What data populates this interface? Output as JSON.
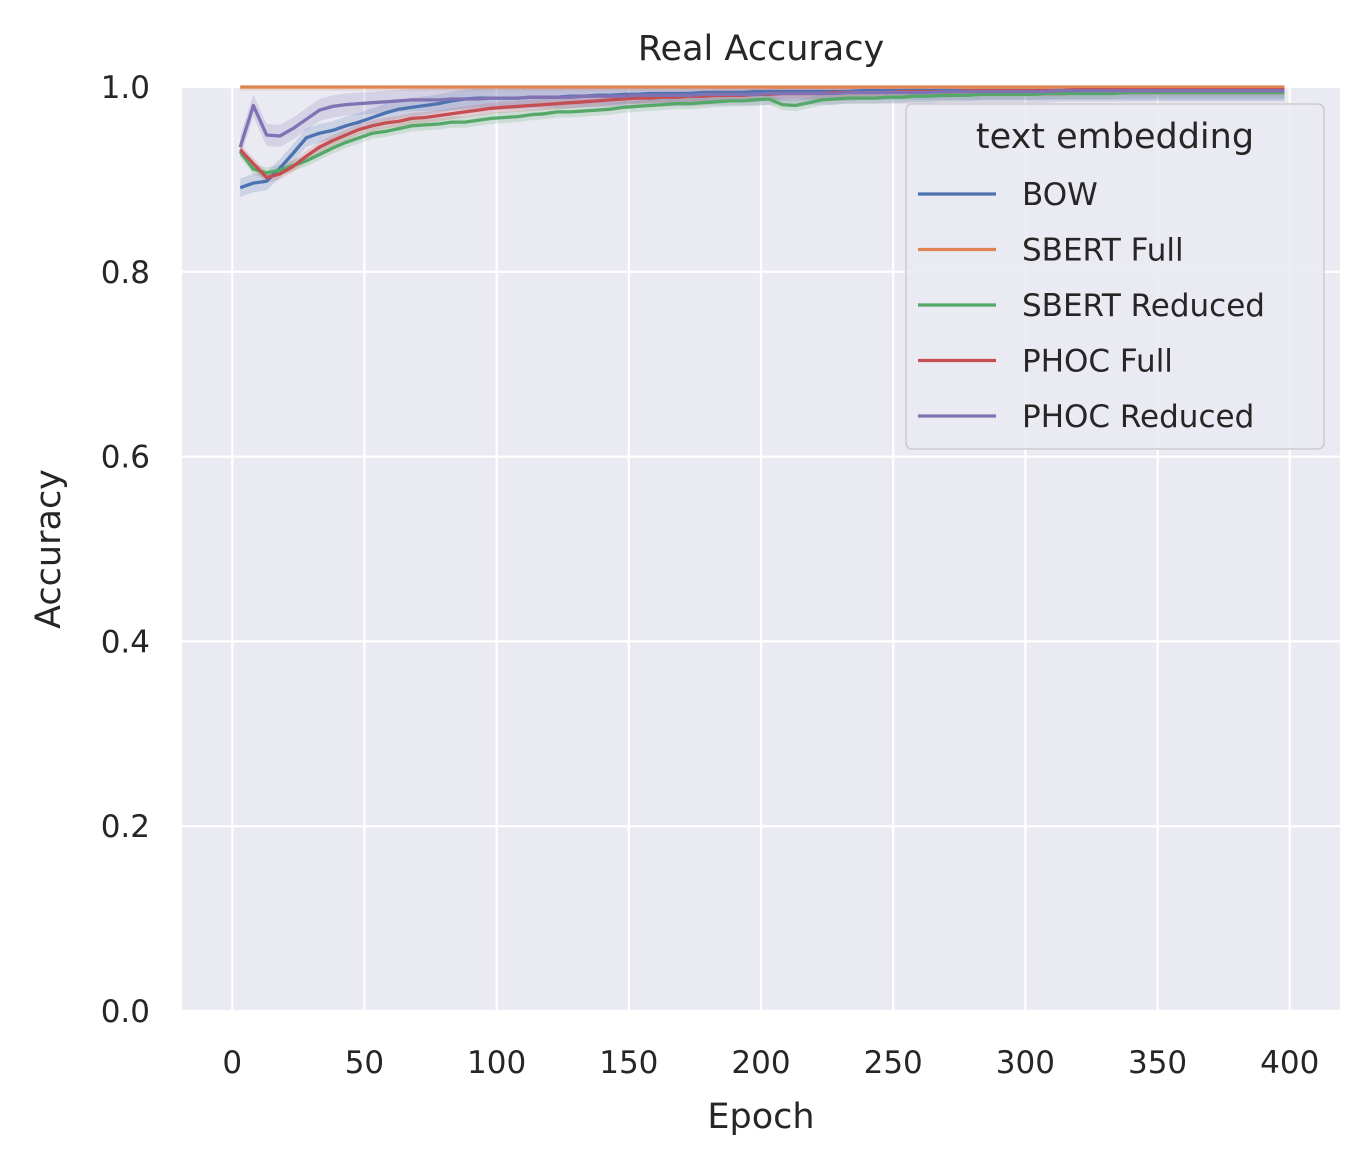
{
  "chart_data": {
    "type": "line",
    "title": "Real Accuracy",
    "xlabel": "Epoch",
    "ylabel": "Accuracy",
    "xlim": [
      -19,
      419
    ],
    "ylim": [
      0.0,
      1.0
    ],
    "xticks": [
      0,
      50,
      100,
      150,
      200,
      250,
      300,
      350,
      400
    ],
    "yticks": [
      0.0,
      0.2,
      0.4,
      0.6,
      0.8,
      1.0
    ],
    "xtick_labels": [
      "0",
      "50",
      "100",
      "150",
      "200",
      "250",
      "300",
      "350",
      "400"
    ],
    "ytick_labels": [
      "0.0",
      "0.2",
      "0.4",
      "0.6",
      "0.8",
      "1.0"
    ],
    "grid": true,
    "legend": {
      "title": "text embedding",
      "placement": "upper right"
    },
    "background": "#eaeaf2",
    "series": [
      {
        "name": "BOW",
        "color": "#4c72b0",
        "x": [
          3,
          8,
          13,
          18,
          23,
          28,
          33,
          38,
          43,
          48,
          53,
          58,
          63,
          68,
          73,
          78,
          83,
          88,
          93,
          98,
          103,
          108,
          113,
          118,
          123,
          128,
          133,
          138,
          143,
          148,
          153,
          158,
          163,
          168,
          173,
          178,
          183,
          188,
          193,
          198,
          203,
          208,
          213,
          218,
          223,
          228,
          233,
          238,
          243,
          248,
          253,
          258,
          263,
          268,
          273,
          278,
          283,
          288,
          293,
          298,
          303,
          308,
          313,
          318,
          323,
          328,
          333,
          338,
          343,
          348,
          353,
          358,
          363,
          368,
          373,
          378,
          383,
          388,
          393,
          398
        ],
        "y": [
          0.891,
          0.896,
          0.898,
          0.912,
          0.928,
          0.945,
          0.95,
          0.953,
          0.958,
          0.962,
          0.967,
          0.972,
          0.976,
          0.978,
          0.98,
          0.982,
          0.985,
          0.987,
          0.988,
          0.988,
          0.988,
          0.988,
          0.989,
          0.989,
          0.989,
          0.99,
          0.99,
          0.991,
          0.991,
          0.992,
          0.992,
          0.993,
          0.993,
          0.993,
          0.993,
          0.994,
          0.994,
          0.994,
          0.994,
          0.995,
          0.995,
          0.995,
          0.995,
          0.995,
          0.995,
          0.995,
          0.995,
          0.996,
          0.996,
          0.996,
          0.996,
          0.996,
          0.996,
          0.996,
          0.996,
          0.996,
          0.996,
          0.996,
          0.996,
          0.996,
          0.996,
          0.996,
          0.996,
          0.996,
          0.996,
          0.996,
          0.996,
          0.996,
          0.996,
          0.996,
          0.996,
          0.996,
          0.996,
          0.996,
          0.996,
          0.996,
          0.996,
          0.996,
          0.996,
          0.996
        ],
        "ci": 0.01
      },
      {
        "name": "SBERT Full",
        "color": "#dd8452",
        "x": [
          3,
          8,
          13,
          18,
          23,
          28,
          33,
          38,
          43,
          48,
          53,
          58,
          63,
          68,
          73,
          78,
          83,
          88,
          93,
          98,
          103,
          108,
          113,
          118,
          123,
          128,
          133,
          138,
          143,
          148,
          153,
          158,
          163,
          168,
          173,
          178,
          183,
          188,
          193,
          198,
          203,
          208,
          213,
          218,
          223,
          228,
          233,
          238,
          243,
          248,
          253,
          258,
          263,
          268,
          273,
          278,
          283,
          288,
          293,
          298,
          303,
          308,
          313,
          318,
          323,
          328,
          333,
          338,
          343,
          348,
          353,
          358,
          363,
          368,
          373,
          378,
          383,
          388,
          393,
          398
        ],
        "y": [
          1.0,
          1.0,
          1.0,
          1.0,
          1.0,
          1.0,
          1.0,
          1.0,
          1.0,
          1.0,
          1.0,
          1.0,
          1.0,
          1.0,
          1.0,
          1.0,
          1.0,
          1.0,
          1.0,
          1.0,
          1.0,
          1.0,
          1.0,
          1.0,
          1.0,
          1.0,
          1.0,
          1.0,
          1.0,
          1.0,
          1.0,
          1.0,
          1.0,
          1.0,
          1.0,
          1.0,
          1.0,
          1.0,
          1.0,
          1.0,
          1.0,
          1.0,
          1.0,
          1.0,
          1.0,
          1.0,
          1.0,
          1.0,
          1.0,
          1.0,
          1.0,
          1.0,
          1.0,
          1.0,
          1.0,
          1.0,
          1.0,
          1.0,
          1.0,
          1.0,
          1.0,
          1.0,
          1.0,
          1.0,
          1.0,
          1.0,
          1.0,
          1.0,
          1.0,
          1.0,
          1.0,
          1.0,
          1.0,
          1.0,
          1.0,
          1.0,
          1.0,
          1.0,
          1.0,
          1.0
        ],
        "ci": 0.004
      },
      {
        "name": "SBERT Reduced",
        "color": "#55a868",
        "x": [
          3,
          8,
          13,
          18,
          23,
          28,
          33,
          38,
          43,
          48,
          53,
          58,
          63,
          68,
          73,
          78,
          83,
          88,
          93,
          98,
          103,
          108,
          113,
          118,
          123,
          128,
          133,
          138,
          143,
          148,
          153,
          158,
          163,
          168,
          173,
          178,
          183,
          188,
          193,
          198,
          203,
          208,
          213,
          218,
          223,
          228,
          233,
          238,
          243,
          248,
          253,
          258,
          263,
          268,
          273,
          278,
          283,
          288,
          293,
          298,
          303,
          308,
          313,
          318,
          323,
          328,
          333,
          338,
          343,
          348,
          353,
          358,
          363,
          368,
          373,
          378,
          383,
          388,
          393,
          398
        ],
        "y": [
          0.93,
          0.911,
          0.907,
          0.91,
          0.915,
          0.92,
          0.927,
          0.934,
          0.94,
          0.945,
          0.95,
          0.952,
          0.955,
          0.958,
          0.959,
          0.96,
          0.962,
          0.962,
          0.964,
          0.966,
          0.967,
          0.968,
          0.97,
          0.971,
          0.973,
          0.973,
          0.974,
          0.975,
          0.976,
          0.978,
          0.979,
          0.98,
          0.981,
          0.982,
          0.982,
          0.983,
          0.984,
          0.985,
          0.985,
          0.986,
          0.987,
          0.981,
          0.98,
          0.983,
          0.986,
          0.987,
          0.988,
          0.988,
          0.988,
          0.989,
          0.989,
          0.99,
          0.99,
          0.991,
          0.991,
          0.991,
          0.992,
          0.992,
          0.992,
          0.992,
          0.992,
          0.993,
          0.993,
          0.993,
          0.993,
          0.993,
          0.993,
          0.994,
          0.994,
          0.994,
          0.994,
          0.994,
          0.994,
          0.994,
          0.994,
          0.994,
          0.994,
          0.994,
          0.994,
          0.994
        ],
        "ci": 0.006
      },
      {
        "name": "PHOC Full",
        "color": "#c44e52",
        "x": [
          3,
          8,
          13,
          18,
          23,
          28,
          33,
          38,
          43,
          48,
          53,
          58,
          63,
          68,
          73,
          78,
          83,
          88,
          93,
          98,
          103,
          108,
          113,
          118,
          123,
          128,
          133,
          138,
          143,
          148,
          153,
          158,
          163,
          168,
          173,
          178,
          183,
          188,
          193,
          198,
          203,
          208,
          213,
          218,
          223,
          228,
          233,
          238,
          243,
          248,
          253,
          258,
          263,
          268,
          273,
          278,
          283,
          288,
          293,
          298,
          303,
          308,
          313,
          318,
          323,
          328,
          333,
          338,
          343,
          348,
          353,
          358,
          363,
          368,
          373,
          378,
          383,
          388,
          393,
          398
        ],
        "y": [
          0.932,
          0.917,
          0.902,
          0.906,
          0.914,
          0.925,
          0.935,
          0.942,
          0.948,
          0.954,
          0.958,
          0.961,
          0.963,
          0.966,
          0.967,
          0.969,
          0.971,
          0.973,
          0.975,
          0.977,
          0.978,
          0.979,
          0.98,
          0.981,
          0.982,
          0.983,
          0.984,
          0.985,
          0.986,
          0.987,
          0.988,
          0.988,
          0.989,
          0.989,
          0.99,
          0.99,
          0.991,
          0.991,
          0.991,
          0.992,
          0.992,
          0.993,
          0.993,
          0.993,
          0.993,
          0.994,
          0.994,
          0.994,
          0.994,
          0.994,
          0.995,
          0.995,
          0.995,
          0.995,
          0.995,
          0.996,
          0.996,
          0.996,
          0.996,
          0.996,
          0.996,
          0.996,
          0.996,
          0.997,
          0.997,
          0.997,
          0.997,
          0.997,
          0.997,
          0.997,
          0.997,
          0.997,
          0.997,
          0.997,
          0.997,
          0.997,
          0.997,
          0.997,
          0.997,
          0.997
        ],
        "ci": 0.006
      },
      {
        "name": "PHOC Reduced",
        "color": "#8172b3",
        "x": [
          3,
          8,
          13,
          18,
          23,
          28,
          33,
          38,
          43,
          48,
          53,
          58,
          63,
          68,
          73,
          78,
          83,
          88,
          93,
          98,
          103,
          108,
          113,
          118,
          123,
          128,
          133,
          138,
          143,
          148,
          153,
          158,
          163,
          168,
          173,
          178,
          183,
          188,
          193,
          198,
          203,
          208,
          213,
          218,
          223,
          228,
          233,
          238,
          243,
          248,
          253,
          258,
          263,
          268,
          273,
          278,
          283,
          288,
          293,
          298,
          303,
          308,
          313,
          318,
          323,
          328,
          333,
          338,
          343,
          348,
          353,
          358,
          363,
          368,
          373,
          378,
          383,
          388,
          393,
          398
        ],
        "y": [
          0.935,
          0.98,
          0.948,
          0.947,
          0.955,
          0.965,
          0.975,
          0.979,
          0.981,
          0.982,
          0.983,
          0.984,
          0.985,
          0.986,
          0.986,
          0.986,
          0.987,
          0.987,
          0.987,
          0.988,
          0.988,
          0.988,
          0.989,
          0.989,
          0.989,
          0.989,
          0.99,
          0.99,
          0.99,
          0.99,
          0.991,
          0.991,
          0.991,
          0.991,
          0.991,
          0.992,
          0.992,
          0.992,
          0.992,
          0.992,
          0.993,
          0.993,
          0.993,
          0.993,
          0.993,
          0.993,
          0.994,
          0.994,
          0.994,
          0.994,
          0.994,
          0.994,
          0.994,
          0.995,
          0.995,
          0.995,
          0.995,
          0.995,
          0.995,
          0.995,
          0.995,
          0.995,
          0.996,
          0.996,
          0.996,
          0.996,
          0.996,
          0.996,
          0.996,
          0.996,
          0.996,
          0.996,
          0.996,
          0.996,
          0.996,
          0.996,
          0.996,
          0.996,
          0.996,
          0.996
        ],
        "ci": 0.012
      }
    ]
  }
}
